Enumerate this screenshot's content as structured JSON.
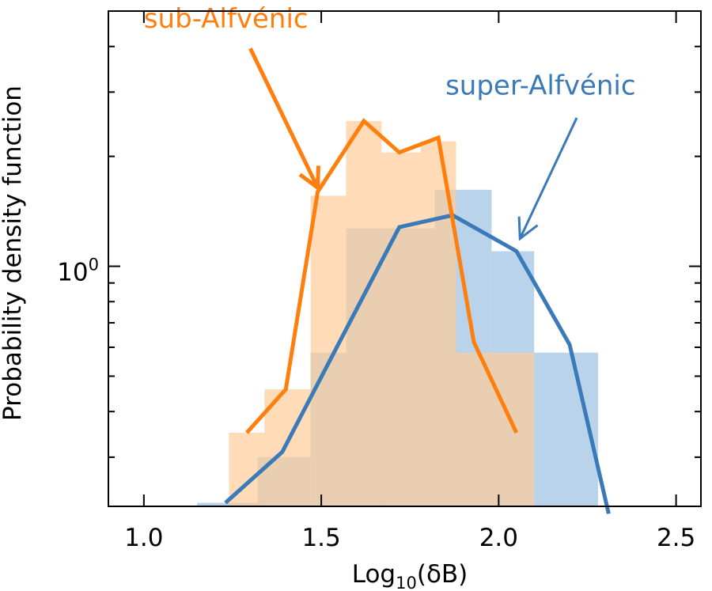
{
  "chart_data": {
    "type": "histogram",
    "xlabel_main": "Log",
    "xlabel_sub": "10",
    "xlabel_tail": "(δB)",
    "ylabel": "Probability density function",
    "xlim": [
      0.9,
      2.57
    ],
    "ylim": [
      0.22,
      5.0
    ],
    "yscale": "log",
    "x_ticks": [
      1.0,
      1.5,
      2.0,
      2.5
    ],
    "x_tick_labels": [
      "1.0",
      "1.5",
      "2.0",
      "2.5"
    ],
    "y_tick_label": {
      "base": "10",
      "exp": "0",
      "value": 1.0
    },
    "y_minor_ticks": [
      0.3,
      0.4,
      0.5,
      0.6,
      0.7,
      0.8,
      0.9,
      2.0,
      3.0,
      4.0
    ],
    "grid": false,
    "series": [
      {
        "name": "super-Alfvénic",
        "color": "#3a7ab8",
        "fill_color": "#b9d4ea",
        "bins": [
          {
            "x0": 1.15,
            "x1": 1.32,
            "value": 0.225
          },
          {
            "x0": 1.32,
            "x1": 1.47,
            "value": 0.3
          },
          {
            "x0": 1.47,
            "x1": 1.57,
            "value": 0.58
          },
          {
            "x0": 1.57,
            "x1": 1.82,
            "value": 1.27
          },
          {
            "x0": 1.82,
            "x1": 1.98,
            "value": 1.62
          },
          {
            "x0": 1.98,
            "x1": 2.1,
            "value": 1.1
          },
          {
            "x0": 2.1,
            "x1": 2.28,
            "value": 0.58
          }
        ],
        "line_x": [
          1.23,
          1.39,
          1.72,
          1.87,
          2.05,
          2.2,
          2.31
        ],
        "line_y": [
          0.225,
          0.31,
          1.28,
          1.38,
          1.1,
          0.61,
          0.21
        ]
      },
      {
        "name": "sub-Alfvénic",
        "color": "#ff7f0e",
        "fill_color": "#ffcc99",
        "bins": [
          {
            "x0": 1.24,
            "x1": 1.34,
            "value": 0.35
          },
          {
            "x0": 1.34,
            "x1": 1.47,
            "value": 0.46
          },
          {
            "x0": 1.47,
            "x1": 1.52,
            "value": 1.56
          },
          {
            "x0": 1.52,
            "x1": 1.57,
            "value": 1.56
          },
          {
            "x0": 1.57,
            "x1": 1.67,
            "value": 2.5
          },
          {
            "x0": 1.67,
            "x1": 1.78,
            "value": 2.05
          },
          {
            "x0": 1.78,
            "x1": 1.88,
            "value": 2.2
          },
          {
            "x0": 1.88,
            "x1": 2.1,
            "value": 0.58
          }
        ],
        "line_x": [
          1.29,
          1.4,
          1.49,
          1.62,
          1.72,
          1.83,
          1.93,
          2.05
        ],
        "line_y": [
          0.35,
          0.46,
          1.6,
          2.5,
          2.05,
          2.25,
          0.62,
          0.35
        ]
      }
    ],
    "annotations": [
      {
        "text": "sub-Alfvénic",
        "color": "#ff7f0e",
        "text_x": 1.0,
        "text_y": 4.5,
        "arrow_from": [
          1.3,
          3.95
        ],
        "arrow_to": [
          1.49,
          1.64
        ]
      },
      {
        "text": "super-Alfvénic",
        "color": "#3a7ab8",
        "text_x": 1.85,
        "text_y": 2.95,
        "arrow_from": [
          2.22,
          2.55
        ],
        "arrow_to": [
          2.06,
          1.19
        ]
      }
    ]
  }
}
